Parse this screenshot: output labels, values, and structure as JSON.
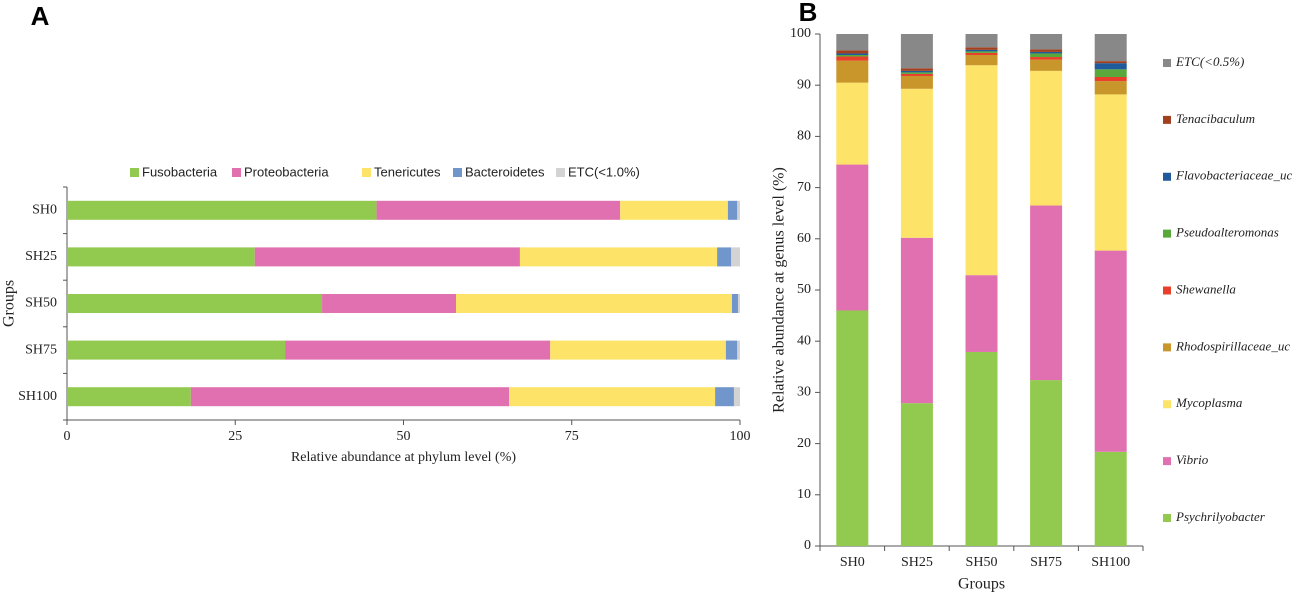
{
  "chart_data": [
    {
      "type": "bar",
      "orientation": "horizontal",
      "stacked": true,
      "label": "A",
      "x_label": "Relative abundance at phylum level (%)",
      "y_label": "Groups",
      "categories": [
        "SH0",
        "SH25",
        "SH50",
        "SH75",
        "SH100"
      ],
      "xlim": [
        0,
        100
      ],
      "xticks": [
        0,
        25,
        50,
        75,
        100
      ],
      "grid": false,
      "legend": "top",
      "series": [
        {
          "name": "Fusobacteria",
          "color": "#92c94f",
          "values": [
            46.0,
            27.9,
            37.9,
            32.4,
            18.4
          ]
        },
        {
          "name": "Proteobacteria",
          "color": "#e070b0",
          "values": [
            36.2,
            39.4,
            19.9,
            39.4,
            47.3
          ]
        },
        {
          "name": "Tenericutes",
          "color": "#fde468",
          "values": [
            16.0,
            29.3,
            41.0,
            26.1,
            30.6
          ]
        },
        {
          "name": "Bacteroidetes",
          "color": "#7096cc",
          "values": [
            1.4,
            2.1,
            0.9,
            1.7,
            2.8
          ]
        },
        {
          "name": "ETC(<1.0%)",
          "color": "#d3d3d3",
          "values": [
            0.4,
            1.3,
            0.3,
            0.4,
            0.9
          ]
        }
      ]
    },
    {
      "type": "bar",
      "orientation": "vertical",
      "stacked": true,
      "label": "B",
      "x_label": "Groups",
      "y_label": "Relative abundance at genus level (%)",
      "categories": [
        "SH0",
        "SH25",
        "SH50",
        "SH75",
        "SH100"
      ],
      "ylim": [
        0,
        100
      ],
      "yticks": [
        0,
        10,
        20,
        30,
        40,
        50,
        60,
        70,
        80,
        90,
        100
      ],
      "grid": false,
      "legend": "right",
      "series": [
        {
          "name": "Psychrilyobacter",
          "color": "#92c94f",
          "values": [
            46.0,
            27.9,
            37.9,
            32.4,
            18.4
          ]
        },
        {
          "name": "Vibrio",
          "color": "#e070b0",
          "values": [
            28.5,
            32.3,
            15.0,
            34.1,
            39.3
          ]
        },
        {
          "name": "Mycoplasma",
          "color": "#fde468",
          "values": [
            16.0,
            29.1,
            41.0,
            26.3,
            30.5
          ]
        },
        {
          "name": "Rhodospirillaceae_uc",
          "color": "#c8962a",
          "values": [
            4.3,
            2.5,
            2.0,
            2.2,
            2.6
          ]
        },
        {
          "name": "Shewanella",
          "color": "#e8402a",
          "values": [
            0.8,
            0.4,
            0.4,
            0.5,
            0.8
          ]
        },
        {
          "name": "Pseudoalteromonas",
          "color": "#5aa83c",
          "values": [
            0.3,
            0.3,
            0.3,
            0.7,
            1.5
          ]
        },
        {
          "name": "Flavobacteriaceae_uc",
          "color": "#1f5a9a",
          "values": [
            0.3,
            0.3,
            0.3,
            0.3,
            1.2
          ]
        },
        {
          "name": "Tenacibaculum",
          "color": "#a0401e",
          "values": [
            0.6,
            0.5,
            0.5,
            0.5,
            0.4
          ]
        },
        {
          "name": "ETC(<0.5%)",
          "color": "#888888",
          "values": [
            3.2,
            6.7,
            2.6,
            3.0,
            5.3
          ]
        }
      ]
    }
  ]
}
